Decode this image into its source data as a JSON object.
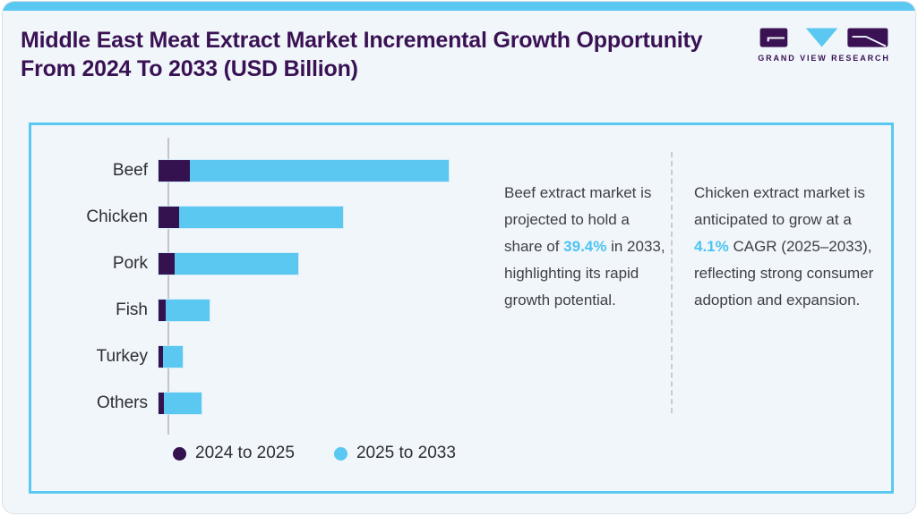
{
  "header": {
    "title": "Middle East Meat Extract Market Incremental Growth Opportunity From 2024 To 2033 (USD Billion)",
    "logo_text": "GRAND VIEW RESEARCH"
  },
  "chart_data": {
    "type": "bar",
    "orientation": "horizontal",
    "stacked": true,
    "title": "Middle East Meat Extract Market Incremental Growth Opportunity From 2024 To 2033 (USD Billion)",
    "categories": [
      "Beef",
      "Chicken",
      "Pork",
      "Fish",
      "Turkey",
      "Others"
    ],
    "series": [
      {
        "name": "2024 to 2025",
        "color": "#34114F",
        "values": [
          10.9,
          7.2,
          5.6,
          2.4,
          1.5,
          1.9
        ]
      },
      {
        "name": "2025 to 2033",
        "color": "#5BC8F2",
        "values": [
          89.1,
          56.5,
          42.5,
          15.2,
          6.7,
          12.8
        ]
      }
    ],
    "xlabel": "",
    "ylabel": "",
    "value_axis_ticks_visible": false,
    "xlim": [
      0,
      105
    ],
    "note": "No numeric axis labels shown; values are relative estimates normalized so the longest stacked bar (Beef) totals 100.",
    "legend_position": "bottom"
  },
  "annotations": {
    "beef": {
      "before": "Beef extract market is projected to hold a share of ",
      "highlight": "39.4%",
      "after": " in 2033, highlighting its rapid growth potential."
    },
    "chicken": {
      "before": "Chicken extract market is anticipated to grow at a ",
      "highlight": "4.1%",
      "after": " CAGR (2025–2033), reflecting strong consumer adoption and expansion."
    }
  },
  "colors": {
    "accent_strip": "#5BC8F2",
    "panel_border": "#5BC8F2",
    "card_background": "#F0F6FA",
    "title_purple": "#3A1254",
    "series_dark": "#34114F",
    "series_light": "#5BC8F2",
    "highlight_blue": "#4DC3F2",
    "body_text": "#3F3F46"
  }
}
